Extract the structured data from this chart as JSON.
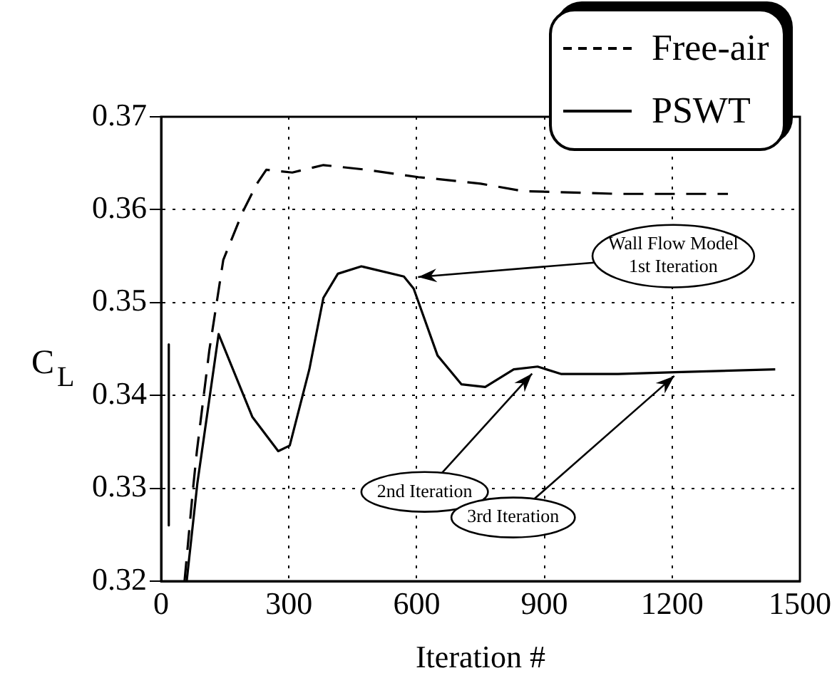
{
  "chart_data": {
    "type": "line",
    "xlabel": "Iteration #",
    "ylabel": "C$_{L}$",
    "xlim": [
      0,
      1500
    ],
    "xticks": [
      0,
      300,
      600,
      900,
      1200,
      1500
    ],
    "ylim": [
      0.32,
      0.37
    ],
    "yticks": [
      0.32,
      0.33,
      0.34,
      0.35,
      0.36,
      0.37
    ],
    "grid": true,
    "legend": "top right",
    "marker": "none",
    "series": [
      {
        "name": "Free-air",
        "color": "#000000",
        "line_style": "dashed",
        "x": [
          55,
          75,
          84,
          113,
          146,
          191,
          225,
          247,
          308,
          381,
          482,
          604,
          649,
          750,
          850,
          1073,
          1331
        ],
        "values": [
          0.32,
          0.33,
          0.334,
          0.3448,
          0.3546,
          0.3597,
          0.3628,
          0.3643,
          0.364,
          0.3648,
          0.3643,
          0.3635,
          0.3633,
          0.3628,
          0.362,
          0.3617,
          0.3617
        ]
      },
      {
        "name": "PSWT",
        "color": "#000000",
        "line_style": "solid",
        "x": [
          60,
          85,
          135,
          214,
          275,
          302,
          348,
          381,
          415,
          470,
          570,
          593,
          649,
          705,
          761,
          828,
          884,
          940,
          1073,
          1207,
          1442
        ],
        "values": [
          0.32,
          0.3305,
          0.3466,
          0.3377,
          0.334,
          0.3346,
          0.3428,
          0.3505,
          0.3531,
          0.3539,
          0.3528,
          0.3515,
          0.3443,
          0.3412,
          0.3409,
          0.3428,
          0.3431,
          0.3423,
          0.3423,
          0.3425,
          0.3428
        ]
      },
      {
        "color": "#000000",
        "line_style": "solid",
        "x": [
          18,
          18
        ],
        "values": [
          0.3455,
          0.326
        ]
      }
    ],
    "annotations": [
      {
        "text": "Wall Flow Model\n1st Iteration",
        "x": 590,
        "y": 0.3527
      },
      {
        "text": "2nd Iteration",
        "x": 880,
        "y": 0.3428
      },
      {
        "text": "3rd Iteration",
        "x": 1215,
        "y": 0.3425
      }
    ]
  }
}
